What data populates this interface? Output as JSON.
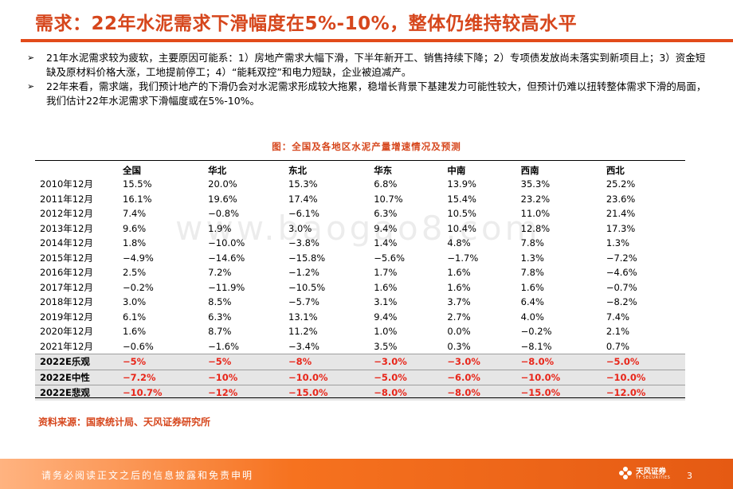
{
  "title": "需求：22年水泥需求下滑幅度在5%-10%，整体仍维持较高水平",
  "bullets": [
    {
      "mark": "➢",
      "text": "21年水泥需求较为疲软，主要原因可能系：1）房地产需求大幅下滑，下半年新开工、销售持续下降；2）专项债发放尚未落实到新项目上；3）资金短缺及原材料价格大涨，工地提前停工；4）“能耗双控”和电力短缺，企业被迫减产。"
    },
    {
      "mark": "➢",
      "text": "22年来看，需求端，我们预计地产的下滑仍会对水泥需求形成较大拖累，稳增长背景下基建发力可能性较大，但预计仍难以扭转整体需求下滑的局面，我们估计22年水泥需求下滑幅度或在5%-10%。"
    }
  ],
  "table_caption": "图：全国及各地区水泥产量增速情况及预测",
  "table": {
    "headers": [
      "",
      "全国",
      "华北",
      "东北",
      "华东",
      "中南",
      "西南",
      "西北"
    ],
    "rows": [
      [
        "2010年12月",
        "15.5%",
        "20.0%",
        "15.3%",
        "6.8%",
        "13.9%",
        "35.3%",
        "25.2%"
      ],
      [
        "2011年12月",
        "16.1%",
        "19.6%",
        "17.4%",
        "10.7%",
        "15.4%",
        "23.2%",
        "23.6%"
      ],
      [
        "2012年12月",
        "7.4%",
        "−0.8%",
        "−6.1%",
        "6.3%",
        "10.5%",
        "11.0%",
        "21.4%"
      ],
      [
        "2013年12月",
        "9.6%",
        "1.9%",
        "3.0%",
        "9.4%",
        "10.4%",
        "12.8%",
        "17.3%"
      ],
      [
        "2014年12月",
        "1.8%",
        "−10.0%",
        "−3.8%",
        "1.4%",
        "4.8%",
        "7.8%",
        "1.3%"
      ],
      [
        "2015年12月",
        "−4.9%",
        "−14.6%",
        "−15.8%",
        "−5.6%",
        "−1.7%",
        "1.3%",
        "−7.2%"
      ],
      [
        "2016年12月",
        "2.5%",
        "7.2%",
        "−1.2%",
        "1.7%",
        "1.6%",
        "7.8%",
        "−4.6%"
      ],
      [
        "2017年12月",
        "−0.2%",
        "−11.9%",
        "−10.5%",
        "1.6%",
        "1.6%",
        "1.6%",
        "−0.7%"
      ],
      [
        "2018年12月",
        "3.0%",
        "8.5%",
        "−5.7%",
        "3.1%",
        "3.7%",
        "6.4%",
        "−8.2%"
      ],
      [
        "2019年12月",
        "6.1%",
        "6.3%",
        "13.1%",
        "9.4%",
        "2.7%",
        "4.0%",
        "7.4%"
      ],
      [
        "2020年12月",
        "1.6%",
        "8.7%",
        "11.2%",
        "1.0%",
        "0.0%",
        "−0.2%",
        "2.1%"
      ],
      [
        "2021年12月",
        "−0.6%",
        "−1.6%",
        "−3.4%",
        "3.5%",
        "0.3%",
        "−8.1%",
        "0.7%"
      ]
    ],
    "forecast_rows": [
      [
        "2022E乐观",
        "−5%",
        "−5%",
        "−8%",
        "−3.0%",
        "−3.0%",
        "−8.0%",
        "−5.0%"
      ],
      [
        "2022E中性",
        "−7.2%",
        "−10%",
        "−10.0%",
        "−5.0%",
        "−6.0%",
        "−10.0%",
        "−10.0%"
      ],
      [
        "2022E悲观",
        "−10.7%",
        "−12%",
        "−15.0%",
        "−8.0%",
        "−8.0%",
        "−15.0%",
        "−12.0%"
      ]
    ]
  },
  "watermark": "www.baogao8.com",
  "source": "资料来源：国家统计局、天风证券研究所",
  "footer": {
    "disclaimer": "请务必阅读正文之后的信息披露和免责申明",
    "logo_name": "天风证券",
    "logo_sub": "TF SECURITIES",
    "page": "3"
  },
  "colors": {
    "accent": "#d6461c",
    "rule": "#e24b1a",
    "forecast_text": "#e8261a",
    "forecast_bg": "#e6e6e6",
    "footer_bg": "#f6721f"
  }
}
